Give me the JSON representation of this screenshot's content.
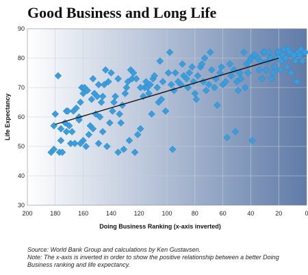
{
  "title": "Good Business and Long Life",
  "source_line": "Source: World Bank Group and calculations by Ken Gustavsen.",
  "note_line": "Note: The x-axis is inverted in order to show the positive relationship between a better Doing Business ranking and life expectancy.",
  "colors": {
    "marker": "#3a9edc",
    "trend": "#111111",
    "gradient_left": "#ffffff",
    "gradient_right": "#5f7ba8",
    "grid": "#c8d0dc"
  },
  "chart_data": {
    "type": "scatter",
    "title": "Good Business and Long Life",
    "xlabel": "Doing Business Ranking (x-axis inverted)",
    "ylabel": "Life Expectancy",
    "xlim": [
      200,
      0
    ],
    "ylim": [
      30,
      90
    ],
    "x_inverted": true,
    "x_ticks": [
      200,
      180,
      160,
      140,
      120,
      100,
      80,
      60,
      40,
      20,
      0
    ],
    "y_ticks": [
      30,
      40,
      50,
      60,
      70,
      80,
      90
    ],
    "grid": true,
    "trendline": {
      "x": [
        180,
        20
      ],
      "y": [
        57.5,
        80
      ]
    },
    "points": [
      [
        183,
        48
      ],
      [
        181,
        49
      ],
      [
        177,
        48
      ],
      [
        176,
        56
      ],
      [
        175,
        48
      ],
      [
        181,
        57
      ],
      [
        172,
        55
      ],
      [
        173,
        58
      ],
      [
        172,
        62
      ],
      [
        169,
        51
      ],
      [
        167,
        62
      ],
      [
        165,
        63
      ],
      [
        166,
        51
      ],
      [
        168,
        55
      ],
      [
        170,
        57
      ],
      [
        163,
        59
      ],
      [
        162,
        65
      ],
      [
        160,
        68
      ],
      [
        161,
        70
      ],
      [
        159,
        70
      ],
      [
        157,
        69
      ],
      [
        160,
        52
      ],
      [
        158,
        50
      ],
      [
        162,
        51
      ],
      [
        156,
        54
      ],
      [
        163,
        60
      ],
      [
        155,
        57
      ],
      [
        178,
        74
      ],
      [
        180,
        61
      ],
      [
        171,
        62
      ],
      [
        154,
        66
      ],
      [
        152,
        68
      ],
      [
        150,
        67
      ],
      [
        149,
        71
      ],
      [
        153,
        73
      ],
      [
        151,
        61
      ],
      [
        148,
        60
      ],
      [
        149,
        51
      ],
      [
        153,
        56
      ],
      [
        147,
        65
      ],
      [
        146,
        67
      ],
      [
        145,
        71
      ],
      [
        144,
        76
      ],
      [
        142,
        72
      ],
      [
        140,
        75
      ],
      [
        138,
        65
      ],
      [
        141,
        58
      ],
      [
        139,
        62
      ],
      [
        143,
        50
      ],
      [
        137,
        67
      ],
      [
        135,
        73
      ],
      [
        134,
        61
      ],
      [
        133,
        58
      ],
      [
        132,
        64
      ],
      [
        130,
        68
      ],
      [
        131,
        49
      ],
      [
        129,
        70
      ],
      [
        128,
        72
      ],
      [
        126,
        76
      ],
      [
        125,
        73
      ],
      [
        124,
        75
      ],
      [
        122,
        73
      ],
      [
        121,
        54
      ],
      [
        123,
        48
      ],
      [
        119,
        56
      ],
      [
        127,
        52
      ],
      [
        117,
        67
      ],
      [
        116,
        70
      ],
      [
        115,
        72
      ],
      [
        114,
        70
      ],
      [
        113,
        68
      ],
      [
        112,
        71
      ],
      [
        110,
        73
      ],
      [
        109,
        74
      ],
      [
        107,
        70
      ],
      [
        106,
        65
      ],
      [
        104,
        66
      ],
      [
        105,
        79
      ],
      [
        103,
        72
      ],
      [
        101,
        62
      ],
      [
        99,
        75
      ],
      [
        98,
        82
      ],
      [
        97,
        71
      ],
      [
        95,
        69
      ],
      [
        94,
        75
      ],
      [
        92,
        72
      ],
      [
        90,
        71
      ],
      [
        89,
        78
      ],
      [
        88,
        74
      ],
      [
        86,
        73
      ],
      [
        85,
        70
      ],
      [
        84,
        75
      ],
      [
        82,
        77
      ],
      [
        81,
        72
      ],
      [
        80,
        68
      ],
      [
        79,
        66
      ],
      [
        78,
        74
      ],
      [
        76,
        77
      ],
      [
        75,
        78
      ],
      [
        74,
        72
      ],
      [
        73,
        80
      ],
      [
        72,
        69
      ],
      [
        70,
        71
      ],
      [
        69,
        82
      ],
      [
        68,
        76
      ],
      [
        66,
        70
      ],
      [
        65,
        73
      ],
      [
        64,
        64
      ],
      [
        62,
        75
      ],
      [
        61,
        77
      ],
      [
        60,
        71
      ],
      [
        58,
        72
      ],
      [
        57,
        53
      ],
      [
        55,
        78
      ],
      [
        54,
        74
      ],
      [
        52,
        76
      ],
      [
        51,
        55
      ],
      [
        50,
        72
      ],
      [
        49,
        69
      ],
      [
        48,
        75
      ],
      [
        47,
        73
      ],
      [
        45,
        82
      ],
      [
        44,
        70
      ],
      [
        43,
        78
      ],
      [
        42,
        75
      ],
      [
        41,
        79
      ],
      [
        40,
        80
      ],
      [
        39,
        52
      ],
      [
        38,
        81
      ],
      [
        37,
        81
      ],
      [
        35,
        80
      ],
      [
        34,
        76
      ],
      [
        33,
        79
      ],
      [
        32,
        73
      ],
      [
        31,
        82
      ],
      [
        30,
        82
      ],
      [
        29,
        76
      ],
      [
        28,
        79
      ],
      [
        27,
        82
      ],
      [
        26,
        80
      ],
      [
        25,
        73
      ],
      [
        24,
        75
      ],
      [
        23,
        77
      ],
      [
        22,
        80
      ],
      [
        21,
        82
      ],
      [
        20,
        82
      ],
      [
        19,
        76
      ],
      [
        18,
        79
      ],
      [
        17,
        81
      ],
      [
        16,
        83
      ],
      [
        15,
        80
      ],
      [
        14,
        77
      ],
      [
        13,
        83
      ],
      [
        12,
        82
      ],
      [
        11,
        75
      ],
      [
        10,
        81
      ],
      [
        9,
        81
      ],
      [
        8,
        79
      ],
      [
        7,
        72
      ],
      [
        6,
        82
      ],
      [
        5,
        81
      ],
      [
        4,
        83
      ],
      [
        3,
        79
      ],
      [
        2,
        82
      ],
      [
        1,
        82
      ],
      [
        96,
        49
      ],
      [
        119,
        70
      ],
      [
        111,
        61
      ],
      [
        135,
        48
      ],
      [
        146,
        55
      ],
      [
        176,
        52
      ]
    ]
  }
}
